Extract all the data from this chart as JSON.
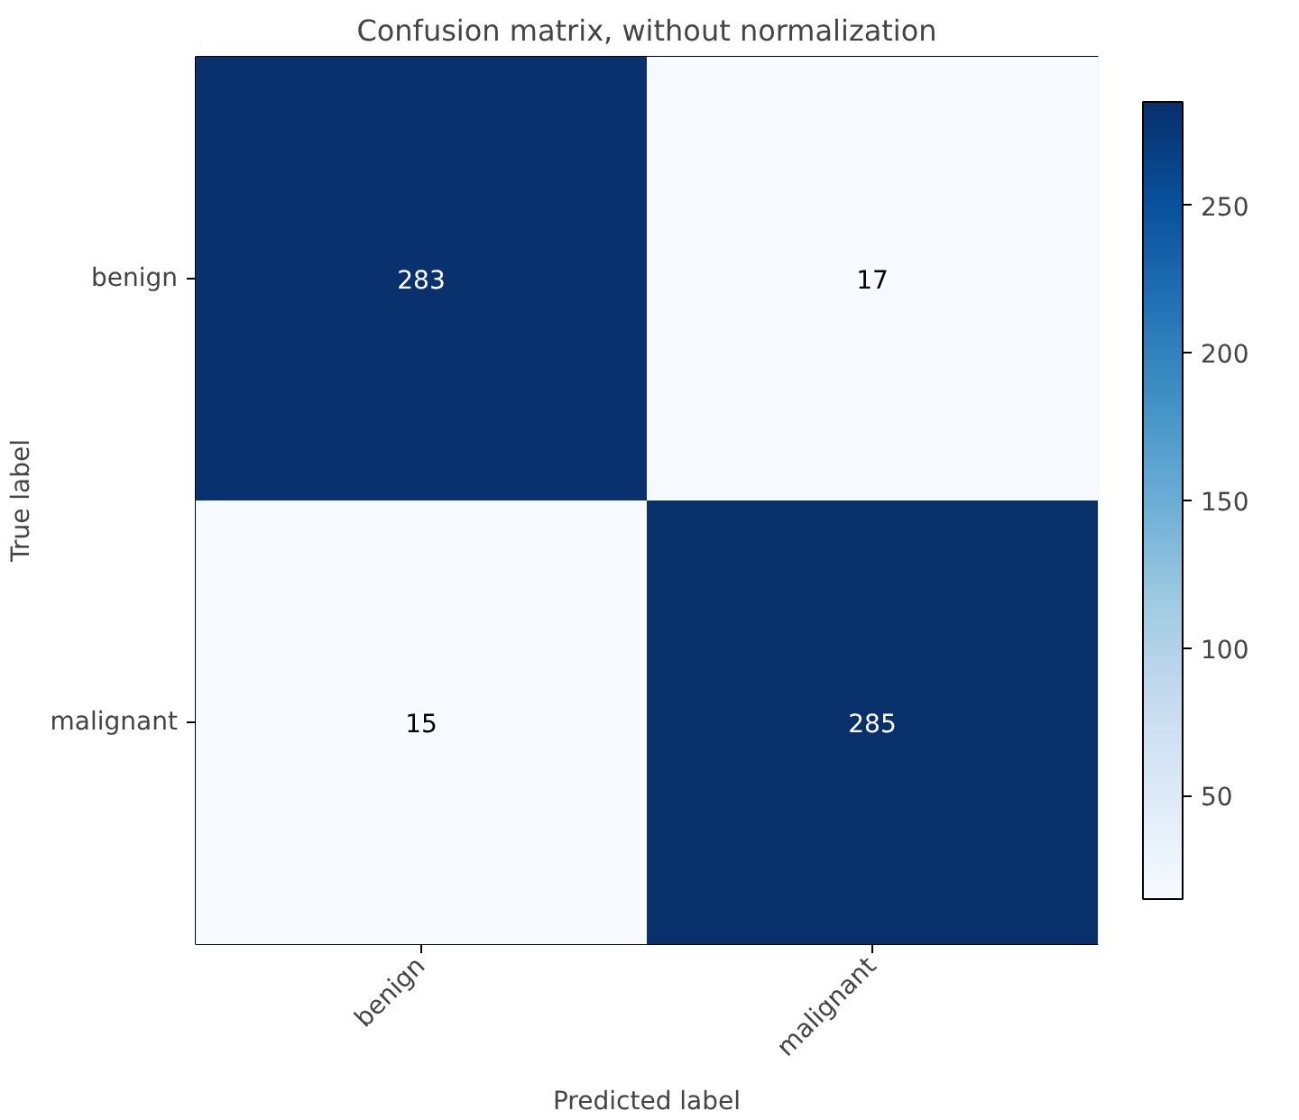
{
  "chart_data": {
    "type": "heatmap",
    "title": "Confusion matrix, without normalization",
    "xlabel": "Predicted label",
    "ylabel": "True label",
    "categories": [
      "benign",
      "malignant"
    ],
    "y_categories": [
      "benign",
      "malignant"
    ],
    "cells": [
      [
        283,
        17
      ],
      [
        15,
        285
      ]
    ],
    "data_labels": true,
    "clim": [
      15,
      285
    ],
    "cticks": [
      50,
      100,
      150,
      200,
      250
    ]
  }
}
